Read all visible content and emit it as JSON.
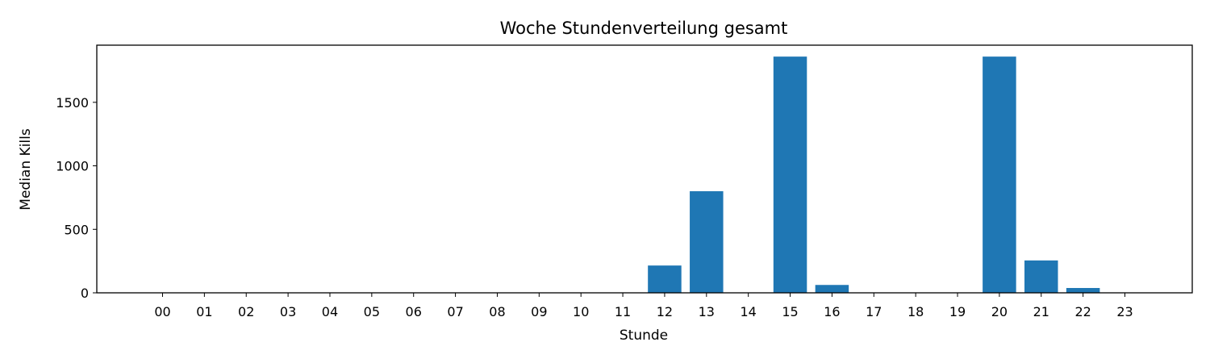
{
  "chart_data": {
    "type": "bar",
    "title": "Woche Stundenverteilung gesamt",
    "xlabel": "Stunde",
    "ylabel": "Median Kills",
    "categories": [
      "00",
      "01",
      "02",
      "03",
      "04",
      "05",
      "06",
      "07",
      "08",
      "09",
      "10",
      "11",
      "12",
      "13",
      "14",
      "15",
      "16",
      "17",
      "18",
      "19",
      "20",
      "21",
      "22",
      "23"
    ],
    "values": [
      0,
      0,
      0,
      0,
      0,
      0,
      0,
      0,
      0,
      0,
      0,
      0,
      215,
      800,
      0,
      1860,
      62,
      0,
      0,
      0,
      1860,
      255,
      38,
      0
    ],
    "ylim": [
      0,
      1950
    ],
    "yticks": [
      0,
      500,
      1000,
      1500
    ],
    "grid": false,
    "colors": {
      "bar": "#1f77b4",
      "axis": "#000000",
      "background": "#ffffff"
    }
  }
}
